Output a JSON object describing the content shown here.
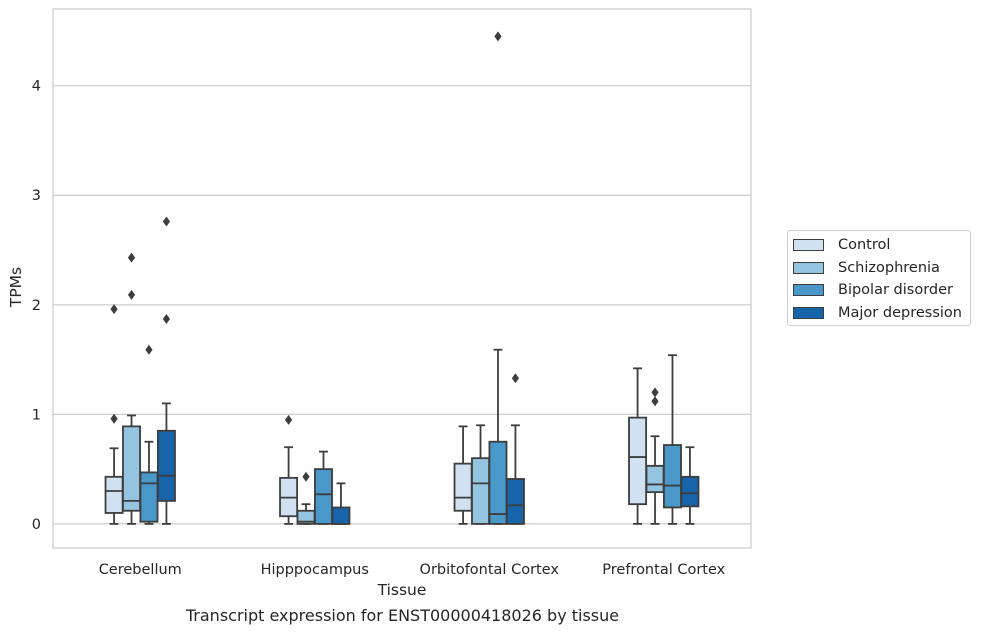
{
  "chart_data": {
    "type": "box",
    "title": "Transcript expression for ENST00000418026 by tissue",
    "xlabel": "Tissue",
    "ylabel": "TPMs",
    "ylim": [
      -0.22,
      4.7
    ],
    "yticks": [
      0,
      1,
      2,
      3,
      4
    ],
    "grid": true,
    "legend_position": "right",
    "categories": [
      "Cerebellum",
      "Hipppocampus",
      "Orbitofontal Cortex",
      "Prefrontal Cortex"
    ],
    "series": [
      {
        "name": "Control",
        "color": "#d0e1f2",
        "boxes": [
          {
            "whislo": 0,
            "q1": 0.1,
            "med": 0.3,
            "q3": 0.43,
            "whishi": 0.69,
            "fliers": [
              0.96,
              1.96
            ]
          },
          {
            "whislo": 0,
            "q1": 0.07,
            "med": 0.24,
            "q3": 0.42,
            "whishi": 0.7,
            "fliers": [
              0.95
            ]
          },
          {
            "whislo": 0,
            "q1": 0.12,
            "med": 0.24,
            "q3": 0.55,
            "whishi": 0.89,
            "fliers": []
          },
          {
            "whislo": 0,
            "q1": 0.18,
            "med": 0.61,
            "q3": 0.97,
            "whishi": 1.42,
            "fliers": []
          }
        ]
      },
      {
        "name": "Schizophrenia",
        "color": "#94c4df",
        "boxes": [
          {
            "whislo": 0,
            "q1": 0.12,
            "med": 0.21,
            "q3": 0.89,
            "whishi": 0.99,
            "fliers": [
              2.09,
              2.43
            ]
          },
          {
            "whislo": 0,
            "q1": 0,
            "med": 0.02,
            "q3": 0.12,
            "whishi": 0.18,
            "fliers": [
              0.43
            ]
          },
          {
            "whislo": 0,
            "q1": 0,
            "med": 0.37,
            "q3": 0.6,
            "whishi": 0.9,
            "fliers": []
          },
          {
            "whislo": 0,
            "q1": 0.29,
            "med": 0.36,
            "q3": 0.53,
            "whishi": 0.8,
            "fliers": [
              1.12,
              1.2
            ]
          }
        ]
      },
      {
        "name": "Bipolar disorder",
        "color": "#4a98c9",
        "boxes": [
          {
            "whislo": 0,
            "q1": 0.02,
            "med": 0.37,
            "q3": 0.47,
            "whishi": 0.75,
            "fliers": [
              1.59
            ]
          },
          {
            "whislo": 0,
            "q1": 0,
            "med": 0.27,
            "q3": 0.5,
            "whishi": 0.66,
            "fliers": []
          },
          {
            "whislo": 0,
            "q1": 0,
            "med": 0.09,
            "q3": 0.75,
            "whishi": 1.59,
            "fliers": [
              4.45
            ]
          },
          {
            "whislo": 0,
            "q1": 0.15,
            "med": 0.35,
            "q3": 0.72,
            "whishi": 1.54,
            "fliers": []
          }
        ]
      },
      {
        "name": "Major depression",
        "color": "#1764ab",
        "boxes": [
          {
            "whislo": 0,
            "q1": 0.21,
            "med": 0.44,
            "q3": 0.85,
            "whishi": 1.1,
            "fliers": [
              1.87,
              2.76
            ]
          },
          {
            "whislo": 0,
            "q1": 0,
            "med": 0,
            "q3": 0.15,
            "whishi": 0.37,
            "fliers": []
          },
          {
            "whislo": 0,
            "q1": 0,
            "med": 0.17,
            "q3": 0.41,
            "whishi": 0.9,
            "fliers": [
              1.33
            ]
          },
          {
            "whislo": 0,
            "q1": 0.16,
            "med": 0.28,
            "q3": 0.43,
            "whishi": 0.7,
            "fliers": []
          }
        ]
      }
    ]
  }
}
